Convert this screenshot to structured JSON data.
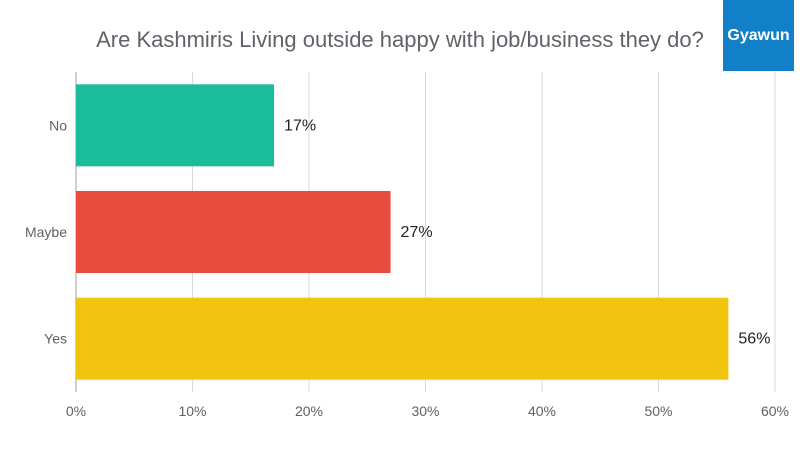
{
  "brand": {
    "label": "Gyawun",
    "color": "#1280c8"
  },
  "chart_data": {
    "type": "bar",
    "orientation": "horizontal",
    "title": "Are Kashmiris Living outside happy with job/business they do?",
    "categories": [
      "No",
      "Maybe",
      "Yes"
    ],
    "values": [
      17,
      27,
      56
    ],
    "data_labels": [
      "17%",
      "27%",
      "56%"
    ],
    "colors": [
      "#1abc9c",
      "#e74c3c",
      "#f1c40f"
    ],
    "xlim": [
      0,
      60
    ],
    "x_ticks": [
      0,
      10,
      20,
      30,
      40,
      50,
      60
    ],
    "x_tick_labels": [
      "0%",
      "10%",
      "20%",
      "30%",
      "40%",
      "50%",
      "60%"
    ],
    "grid": true,
    "legend": "none",
    "xlabel": "",
    "ylabel": ""
  }
}
